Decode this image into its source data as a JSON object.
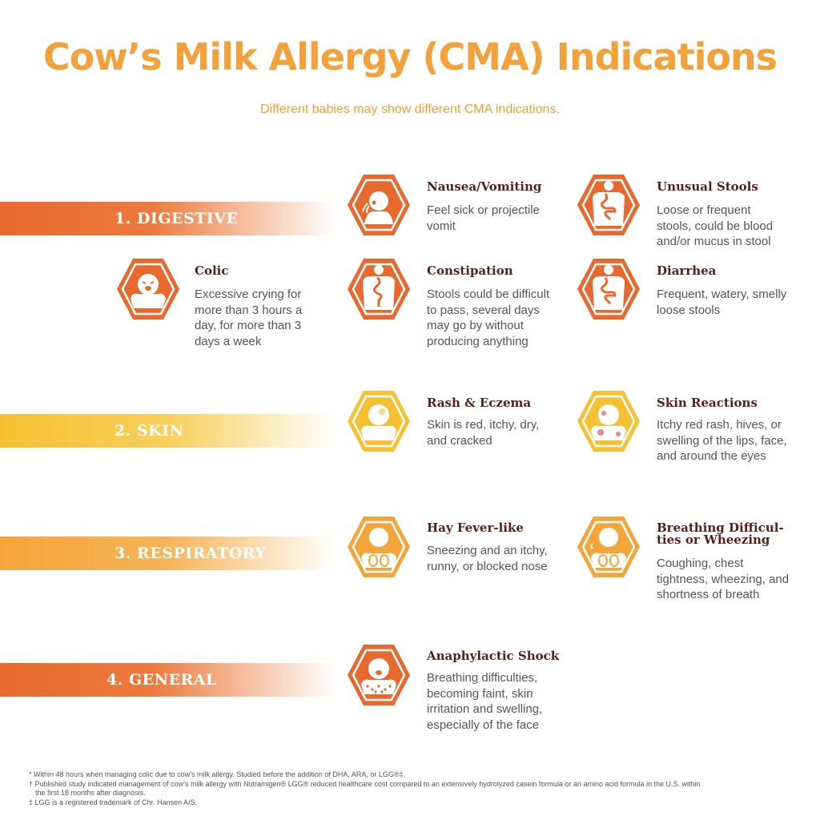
{
  "header": {
    "title": "Cow’s Milk Allergy (CMA) Indications",
    "subtitle": "Different babies may show different CMA indications."
  },
  "colors": {
    "digestive": "#e8692e",
    "skin": "#f5c132",
    "respiratory": "#f4a53a",
    "general": "#e8692e",
    "title": "#f2a13b",
    "item_title": "#5a1e16"
  },
  "categories": [
    {
      "label": "1. DIGESTIVE"
    },
    {
      "label": "2. SKIN"
    },
    {
      "label": "3. RESPIRATORY"
    },
    {
      "label": "4. GENERAL"
    }
  ],
  "indications": [
    {
      "title": "Nausea/Vomiting",
      "desc": "Feel sick or projectile vomit",
      "icon": "vomiting-baby-icon"
    },
    {
      "title": "Unusual Stools",
      "desc": "Loose or frequent stools, could be blood and/or mucus in stool",
      "icon": "digestive-tract-icon"
    },
    {
      "title": "Colic",
      "desc": "Excessive crying for more than 3 hours a day, for more than 3 days a week",
      "icon": "crying-baby-icon"
    },
    {
      "title": "Constipation",
      "desc": "Stools could be difficult to pass, several days may go by without producing anything",
      "icon": "digestive-tract-icon"
    },
    {
      "title": "Diarrhea",
      "desc": "Frequent, watery, smelly loose stools",
      "icon": "digestive-tract-icon"
    },
    {
      "title": "Rash & Eczema",
      "desc": "Skin is red, itchy, dry, and cracked",
      "icon": "rash-baby-icon"
    },
    {
      "title": "Skin Reactions",
      "desc": "Itchy red rash, hives, or swelling of the lips, face, and around the eyes",
      "icon": "skin-reaction-icon"
    },
    {
      "title": "Hay Fever-like",
      "desc": "Sneezing and an itchy, runny, or blocked nose",
      "icon": "lungs-baby-icon"
    },
    {
      "title": "Breathing Difficul-\nties or Wheezing",
      "desc": "Coughing, chest tightness, wheezing, and shortness of breath",
      "icon": "coughing-baby-icon"
    },
    {
      "title": "Anaphylactic Shock",
      "desc": "Breathing difficulties, becoming faint, skin irritation and swelling, especially of the face",
      "icon": "spotted-baby-icon"
    }
  ],
  "footnotes": {
    "line1": "* Within 48 hours when managing colic due to cow’s milk allergy. Studied before the addition of DHA, ARA, or LGG®‡.",
    "line2": "† Published study indicated management of cow’s milk allergy with Nutramigen® LGG® reduced healthcare cost compared to an extensively hydrolyzed casein formula or an amino acid formula in the U.S. within",
    "line3": "the first 18 months after diagnosis.",
    "line4": "‡ LGG is a registered trademark of Chr. Hansen A/S."
  }
}
